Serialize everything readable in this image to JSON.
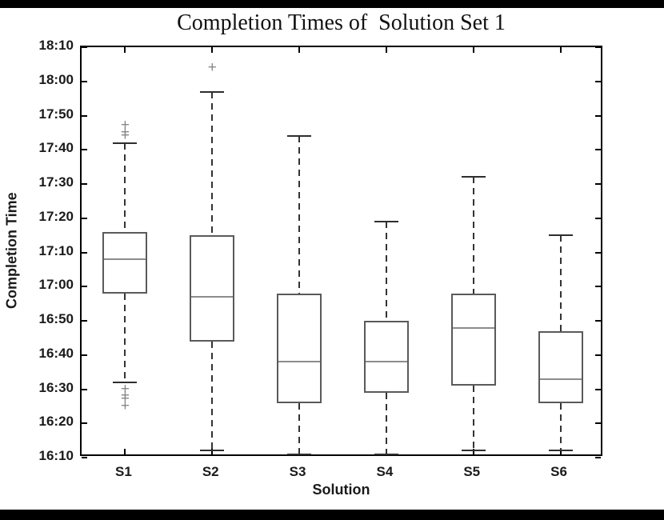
{
  "frame": {
    "background": "#ffffff",
    "letterbox_color": "#000000"
  },
  "chart_data": {
    "type": "boxplot",
    "title": "Completion Times of  Solution Set 1",
    "xlabel": "Solution",
    "ylabel": "Completion Time",
    "categories": [
      "S1",
      "S2",
      "S3",
      "S4",
      "S5",
      "S6"
    ],
    "y_ticks": [
      "18:10",
      "18:00",
      "17:50",
      "17:40",
      "17:30",
      "17:20",
      "17:10",
      "17:00",
      "16:50",
      "16:40",
      "16:30",
      "16:20",
      "16:10"
    ],
    "ylim": [
      "16:10",
      "18:10"
    ],
    "grid": false,
    "legend": "none",
    "series": [
      {
        "label": "S1",
        "whisker_low": "16:32",
        "q1": "16:58",
        "median": "17:08",
        "q3": "17:16",
        "whisker_high": "17:42",
        "outliers_high": [
          "17:44",
          "17:45",
          "17:47"
        ],
        "outliers_low": [
          "16:30",
          "16:28",
          "16:27",
          "16:25"
        ]
      },
      {
        "label": "S2",
        "whisker_low": "16:12",
        "q1": "16:44",
        "median": "16:57",
        "q3": "17:15",
        "whisker_high": "17:57",
        "outliers_high": [
          "18:04"
        ],
        "outliers_low": []
      },
      {
        "label": "S3",
        "whisker_low": "16:11",
        "q1": "16:26",
        "median": "16:38",
        "q3": "16:58",
        "whisker_high": "17:44",
        "outliers_high": [],
        "outliers_low": []
      },
      {
        "label": "S4",
        "whisker_low": "16:11",
        "q1": "16:29",
        "median": "16:38",
        "q3": "16:50",
        "whisker_high": "17:19",
        "outliers_high": [],
        "outliers_low": []
      },
      {
        "label": "S5",
        "whisker_low": "16:12",
        "q1": "16:31",
        "median": "16:48",
        "q3": "16:58",
        "whisker_high": "17:32",
        "outliers_high": [],
        "outliers_low": []
      },
      {
        "label": "S6",
        "whisker_low": "16:12",
        "q1": "16:26",
        "median": "16:33",
        "q3": "16:47",
        "whisker_high": "17:15",
        "outliers_high": [],
        "outliers_low": []
      }
    ],
    "colors": {
      "axis": "#000000",
      "box_edge": "#5a5a5a",
      "median": "#8c8c8c",
      "whisker": "#333333",
      "cap": "#2e2e2e",
      "outlier": "#888888"
    }
  }
}
